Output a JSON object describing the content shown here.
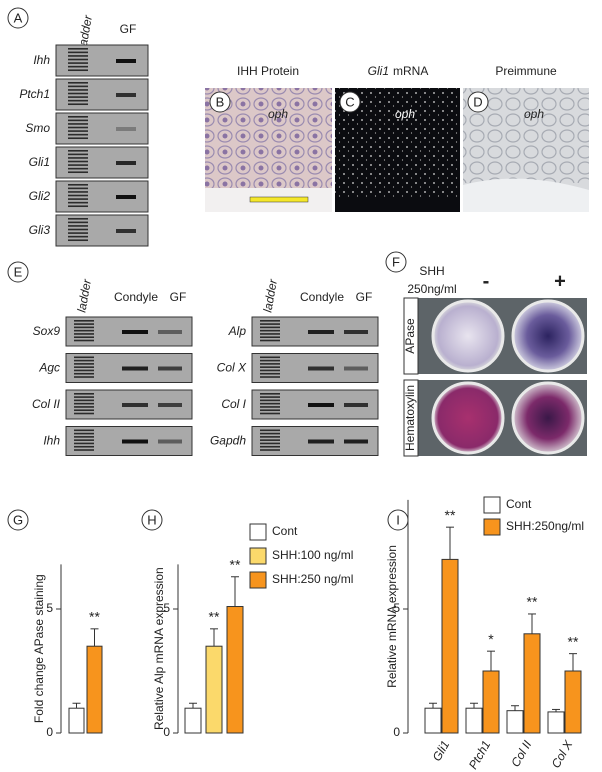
{
  "panels": {
    "A": {
      "label": "A",
      "lanes": [
        "ladder",
        "GF"
      ],
      "genes": [
        "Ihh",
        "Ptch1",
        "Smo",
        "Gli1",
        "Gli2",
        "Gli3"
      ]
    },
    "B": {
      "label": "B",
      "title": "IHH Protein",
      "tag": "oph"
    },
    "C": {
      "label": "C",
      "title_gene": "Gli1",
      "title": "mRNA",
      "tag": "oph"
    },
    "D": {
      "label": "D",
      "title": "Preimmune",
      "tag": "oph"
    },
    "E": {
      "label": "E",
      "groups": [
        {
          "lanes": [
            "ladder",
            "Condyle",
            "GF"
          ],
          "genes": [
            "Sox9",
            "Agc",
            "Col II",
            "Ihh"
          ]
        },
        {
          "lanes": [
            "ladder",
            "Condyle",
            "GF"
          ],
          "genes": [
            "Alp",
            "Col X",
            "Col I",
            "Gapdh"
          ]
        }
      ]
    },
    "F": {
      "label": "F",
      "treatment": [
        "SHH",
        "250ng/ml"
      ],
      "conditions": [
        "-",
        "+"
      ],
      "stains": [
        "APase",
        "Hematoxylin"
      ]
    }
  },
  "chart_data": [
    {
      "type": "bar",
      "label": "G",
      "y_label": "Fold change APase staining",
      "ylim": [
        0,
        6.8
      ],
      "yticks": [
        0,
        5
      ],
      "categories": [
        null
      ],
      "series": [
        {
          "color": "#ffffff",
          "values": [
            1.0
          ],
          "errors": [
            0.2
          ]
        },
        {
          "color": "#f7941d",
          "values": [
            3.5
          ],
          "errors": [
            0.7
          ],
          "significance": [
            "**"
          ]
        }
      ]
    },
    {
      "type": "bar",
      "label": "H",
      "y_label": "Relative Alp mRNA expression",
      "ylim": [
        0,
        6.8
      ],
      "yticks": [
        0,
        5
      ],
      "categories": [
        null
      ],
      "series": [
        {
          "name": "Cont",
          "color": "#ffffff",
          "values": [
            1.0
          ],
          "errors": [
            0.2
          ]
        },
        {
          "name": "SHH:100 ng/ml",
          "color": "#fbd96b",
          "values": [
            3.5
          ],
          "errors": [
            0.7
          ],
          "significance": [
            "**"
          ]
        },
        {
          "name": "SHH:250 ng/ml",
          "color": "#f7941d",
          "values": [
            5.1
          ],
          "errors": [
            1.2
          ],
          "significance": [
            "**"
          ]
        }
      ]
    },
    {
      "type": "bar",
      "label": "I",
      "y_label": "Relative mRNA expression",
      "ylim": [
        0,
        9.4
      ],
      "yticks": [
        0,
        5
      ],
      "categories": [
        "Gli1",
        "Ptch1",
        "Col II",
        "Col X"
      ],
      "series": [
        {
          "name": "Cont",
          "color": "#ffffff",
          "values": [
            1.0,
            1.0,
            0.9,
            0.85
          ],
          "errors": [
            0.2,
            0.2,
            0.2,
            0.1
          ]
        },
        {
          "name": "SHH:250ng/ml",
          "color": "#f7941d",
          "values": [
            7.0,
            2.5,
            4.0,
            2.5
          ],
          "errors": [
            1.3,
            0.8,
            0.8,
            0.7
          ],
          "significance": [
            "**",
            "*",
            "**",
            "**"
          ]
        }
      ]
    }
  ]
}
